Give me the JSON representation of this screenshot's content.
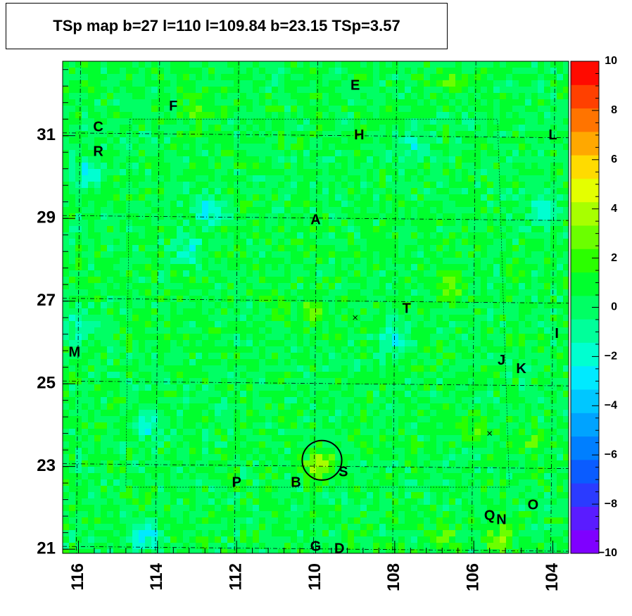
{
  "title": "TSp map b=27 l=110 l=109.84 b=23.15 TSp=3.57",
  "chart_data": {
    "type": "heatmap",
    "title": "TSp map b=27 l=110 l=109.84 b=23.15 TSp=3.57",
    "xlabel": "",
    "ylabel": "",
    "xlim": [
      116.4,
      103.6
    ],
    "ylim": [
      20.9,
      32.8
    ],
    "x_ticks": [
      116,
      114,
      112,
      110,
      108,
      106,
      104
    ],
    "y_ticks": [
      21,
      23,
      25,
      27,
      29,
      31
    ],
    "z_range": [
      -10,
      10
    ],
    "z_ticks": [
      10,
      8,
      6,
      4,
      2,
      0,
      -2,
      -4,
      -6,
      -8,
      -10
    ],
    "background_level": 0.5,
    "palette": [
      "#7f00ff",
      "#5a1cff",
      "#2b3bff",
      "#0a5cff",
      "#007fff",
      "#00a3ff",
      "#00c7ff",
      "#00eaff",
      "#00ffd0",
      "#00ff9a",
      "#00ff64",
      "#00ff2e",
      "#2bff00",
      "#6bff00",
      "#a8ff00",
      "#e4ff00",
      "#ffdb00",
      "#ffa800",
      "#ff7400",
      "#ff4000",
      "#ff0a00"
    ],
    "hotspots": [
      {
        "l": 109.9,
        "b": 23.05,
        "ts": 3.6
      },
      {
        "l": 105.3,
        "b": 21.25,
        "ts": 3.0
      },
      {
        "l": 110.1,
        "b": 26.75,
        "ts": 2.8
      },
      {
        "l": 106.0,
        "b": 24.0,
        "ts": 2.5
      },
      {
        "l": 106.6,
        "b": 27.35,
        "ts": 2.6
      },
      {
        "l": 113.0,
        "b": 31.7,
        "ts": 2.4
      },
      {
        "l": 106.6,
        "b": 32.3,
        "ts": 2.3
      },
      {
        "l": 104.6,
        "b": 23.6,
        "ts": 2.0
      },
      {
        "l": 106.8,
        "b": 21.3,
        "ts": 2.2
      },
      {
        "l": 111.0,
        "b": 27.0,
        "ts": 1.8
      }
    ],
    "coldspots": [
      {
        "l": 115.7,
        "b": 30.1,
        "ts": -2.8
      },
      {
        "l": 108.0,
        "b": 26.1,
        "ts": -2.6
      },
      {
        "l": 112.7,
        "b": 29.2,
        "ts": -2.4
      },
      {
        "l": 114.3,
        "b": 21.3,
        "ts": -2.5
      },
      {
        "l": 113.2,
        "b": 28.2,
        "ts": -1.8
      },
      {
        "l": 114.2,
        "b": 24.0,
        "ts": -2.0
      },
      {
        "l": 116.0,
        "b": 26.4,
        "ts": -1.6
      },
      {
        "l": 104.3,
        "b": 29.2,
        "ts": -2.0
      },
      {
        "l": 107.5,
        "b": 30.8,
        "ts": -1.6
      }
    ],
    "circle": {
      "l": 109.84,
      "b": 23.15,
      "radius_deg": 0.5
    },
    "cross_markers": [
      {
        "l": 109.0,
        "b": 26.6
      },
      {
        "l": 105.6,
        "b": 23.8
      }
    ],
    "sources": [
      {
        "name": "E",
        "l": 109.0,
        "b": 32.2
      },
      {
        "name": "F",
        "l": 113.6,
        "b": 31.7
      },
      {
        "name": "C",
        "l": 115.5,
        "b": 31.2
      },
      {
        "name": "H",
        "l": 108.9,
        "b": 31.0
      },
      {
        "name": "L",
        "l": 104.0,
        "b": 31.0
      },
      {
        "name": "R",
        "l": 115.5,
        "b": 30.6
      },
      {
        "name": "A",
        "l": 110.0,
        "b": 28.95
      },
      {
        "name": "T",
        "l": 107.7,
        "b": 26.8
      },
      {
        "name": "I",
        "l": 103.9,
        "b": 26.2
      },
      {
        "name": "M",
        "l": 116.1,
        "b": 25.75
      },
      {
        "name": "J",
        "l": 105.3,
        "b": 25.55
      },
      {
        "name": "K",
        "l": 104.8,
        "b": 25.35
      },
      {
        "name": "S",
        "l": 109.3,
        "b": 22.85
      },
      {
        "name": "P",
        "l": 112.0,
        "b": 22.6
      },
      {
        "name": "B",
        "l": 110.5,
        "b": 22.6
      },
      {
        "name": "O",
        "l": 104.5,
        "b": 22.05
      },
      {
        "name": "Q",
        "l": 105.6,
        "b": 21.8
      },
      {
        "name": "N",
        "l": 105.3,
        "b": 21.7
      },
      {
        "name": "G",
        "l": 110.0,
        "b": 21.05
      },
      {
        "name": "D",
        "l": 109.4,
        "b": 21.0
      }
    ]
  }
}
